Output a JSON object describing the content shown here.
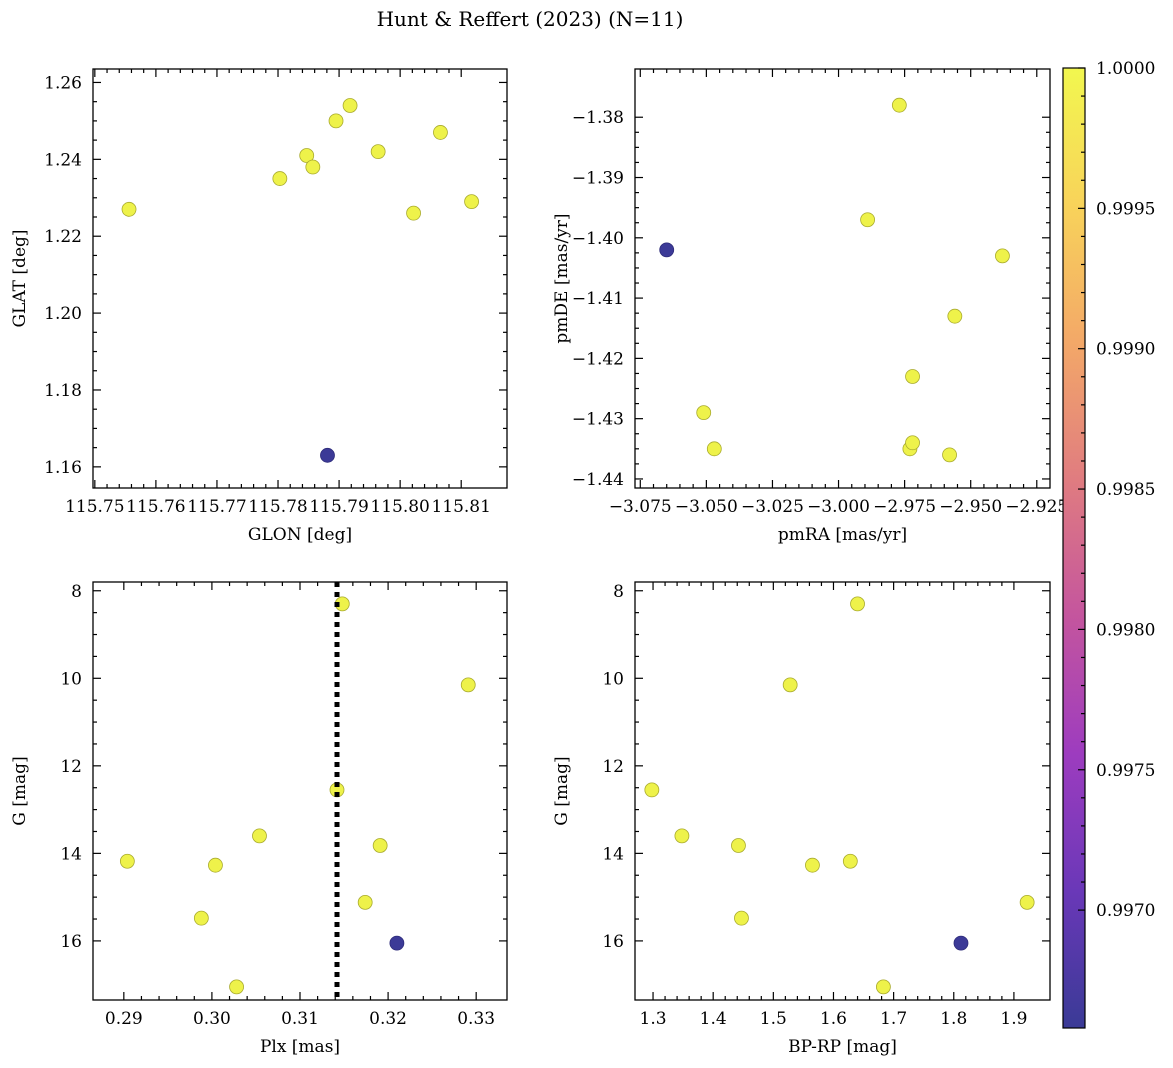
{
  "figure": {
    "title": "Hunt & Reffert (2023) (N=11)"
  },
  "colorbar": {
    "ticks": [
      "0.9970",
      "0.9975",
      "0.9980",
      "0.9985",
      "0.9990",
      "0.9995",
      "1.0000"
    ],
    "range": [
      0.99658,
      1.0
    ],
    "colormap": [
      "#3a3a96",
      "#6a38b8",
      "#9d3cbf",
      "#c4559e",
      "#e07c80",
      "#f3a868",
      "#f8d35a",
      "#f2f74f"
    ]
  },
  "chart_data": [
    {
      "type": "scatter",
      "xlabel": "GLON [deg]",
      "ylabel": "GLAT [deg]",
      "xlim": [
        115.7497,
        115.8175
      ],
      "ylim": [
        1.1545,
        1.2635
      ],
      "xticks": [
        "115.75",
        "115.76",
        "115.77",
        "115.78",
        "115.79",
        "115.80",
        "115.81"
      ],
      "yticks": [
        "1.16",
        "1.18",
        "1.20",
        "1.22",
        "1.24",
        "1.26"
      ],
      "points": [
        {
          "x": 115.7556,
          "y": 1.227,
          "p": 1.0
        },
        {
          "x": 115.7803,
          "y": 1.235,
          "p": 1.0
        },
        {
          "x": 115.7847,
          "y": 1.241,
          "p": 1.0
        },
        {
          "x": 115.7857,
          "y": 1.238,
          "p": 1.0
        },
        {
          "x": 115.7881,
          "y": 1.163,
          "p": 0.9966
        },
        {
          "x": 115.7895,
          "y": 1.25,
          "p": 1.0
        },
        {
          "x": 115.7918,
          "y": 1.254,
          "p": 1.0
        },
        {
          "x": 115.7964,
          "y": 1.242,
          "p": 1.0
        },
        {
          "x": 115.8022,
          "y": 1.226,
          "p": 1.0
        },
        {
          "x": 115.8066,
          "y": 1.247,
          "p": 1.0
        },
        {
          "x": 115.8117,
          "y": 1.229,
          "p": 1.0
        }
      ]
    },
    {
      "type": "scatter",
      "xlabel": "pmRA [mas/yr]",
      "ylabel": "pmDE [mas/yr]",
      "xlim": [
        -3.077,
        -2.92
      ],
      "ylim": [
        -1.4415,
        -1.372
      ],
      "xticks": [
        "−3.075",
        "−3.050",
        "−3.025",
        "−3.000",
        "−2.975",
        "−2.950",
        "−2.925"
      ],
      "yticks": [
        "−1.38",
        "−1.39",
        "−1.40",
        "−1.41",
        "−1.42",
        "−1.43",
        "−1.44"
      ],
      "points": [
        {
          "x": -3.065,
          "y": -1.402,
          "p": 0.9966
        },
        {
          "x": -3.051,
          "y": -1.429,
          "p": 1.0
        },
        {
          "x": -3.047,
          "y": -1.435,
          "p": 1.0
        },
        {
          "x": -2.989,
          "y": -1.397,
          "p": 1.0
        },
        {
          "x": -2.977,
          "y": -1.378,
          "p": 1.0
        },
        {
          "x": -2.973,
          "y": -1.435,
          "p": 1.0
        },
        {
          "x": -2.972,
          "y": -1.434,
          "p": 1.0
        },
        {
          "x": -2.972,
          "y": -1.423,
          "p": 1.0
        },
        {
          "x": -2.958,
          "y": -1.436,
          "p": 1.0
        },
        {
          "x": -2.956,
          "y": -1.413,
          "p": 1.0
        },
        {
          "x": -2.938,
          "y": -1.403,
          "p": 1.0
        }
      ]
    },
    {
      "type": "scatter",
      "xlabel": "Plx [mas]",
      "ylabel": "G [mag]",
      "xlim": [
        0.2865,
        0.3335
      ],
      "ylim": [
        17.35,
        7.8
      ],
      "xticks": [
        "0.29",
        "0.30",
        "0.31",
        "0.32",
        "0.33"
      ],
      "yticks": [
        "8",
        "10",
        "12",
        "14",
        "16"
      ],
      "vline": 0.3142,
      "points": [
        {
          "x": 0.3148,
          "y": 8.3,
          "p": 1.0
        },
        {
          "x": 0.3291,
          "y": 10.15,
          "p": 1.0
        },
        {
          "x": 0.3142,
          "y": 12.55,
          "p": 1.0
        },
        {
          "x": 0.3054,
          "y": 13.6,
          "p": 1.0
        },
        {
          "x": 0.3191,
          "y": 13.82,
          "p": 1.0
        },
        {
          "x": 0.2904,
          "y": 14.18,
          "p": 1.0
        },
        {
          "x": 0.3004,
          "y": 14.27,
          "p": 1.0
        },
        {
          "x": 0.3174,
          "y": 15.12,
          "p": 1.0
        },
        {
          "x": 0.2988,
          "y": 15.48,
          "p": 1.0
        },
        {
          "x": 0.321,
          "y": 16.05,
          "p": 0.9966
        },
        {
          "x": 0.3028,
          "y": 17.05,
          "p": 1.0
        }
      ]
    },
    {
      "type": "scatter",
      "xlabel": "BP-RP [mag]",
      "ylabel": "G [mag]",
      "xlim": [
        1.27,
        1.96
      ],
      "ylim": [
        17.35,
        7.8
      ],
      "xticks": [
        "1.3",
        "1.4",
        "1.5",
        "1.6",
        "1.7",
        "1.8",
        "1.9"
      ],
      "yticks": [
        "8",
        "10",
        "12",
        "14",
        "16"
      ],
      "points": [
        {
          "x": 1.64,
          "y": 8.3,
          "p": 1.0
        },
        {
          "x": 1.528,
          "y": 10.15,
          "p": 1.0
        },
        {
          "x": 1.298,
          "y": 12.55,
          "p": 1.0
        },
        {
          "x": 1.348,
          "y": 13.6,
          "p": 1.0
        },
        {
          "x": 1.442,
          "y": 13.82,
          "p": 1.0
        },
        {
          "x": 1.628,
          "y": 14.18,
          "p": 1.0
        },
        {
          "x": 1.565,
          "y": 14.27,
          "p": 1.0
        },
        {
          "x": 1.922,
          "y": 15.12,
          "p": 1.0
        },
        {
          "x": 1.447,
          "y": 15.48,
          "p": 1.0
        },
        {
          "x": 1.812,
          "y": 16.05,
          "p": 0.9966
        },
        {
          "x": 1.683,
          "y": 17.05,
          "p": 1.0
        }
      ]
    }
  ]
}
